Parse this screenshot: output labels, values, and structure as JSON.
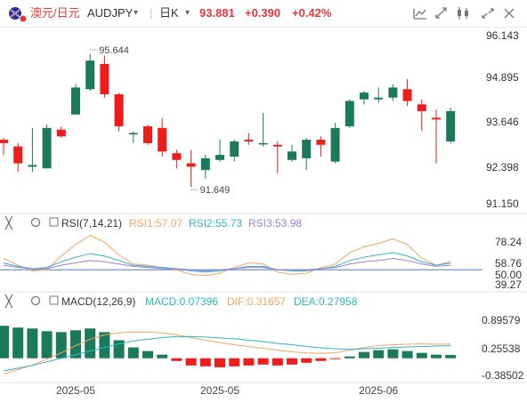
{
  "header": {
    "pair_name": "澳元/日元",
    "symbol": "AUDJPY",
    "timeframe": "日K",
    "price": "93.881",
    "change": "+0.390",
    "change_pct": "+0.42%"
  },
  "colors": {
    "up": "#1a7a5a",
    "down": "#ef1c1c",
    "rsi1": "#f7a35c",
    "rsi2": "#2bb5c8",
    "rsi3": "#9c7cd6",
    "macd": "#2bb5c8",
    "dif": "#f7a35c",
    "dea": "#2bb5c8",
    "accent": "#e23a3a"
  },
  "chart_data": [
    {
      "type": "candlestick",
      "y_ticks": [
        "96.143",
        "94.895",
        "93.646",
        "92.398",
        "91.150"
      ],
      "ylim": [
        91.15,
        96.143
      ],
      "annotations": [
        {
          "label": "95.644",
          "index": 6,
          "value": 95.644
        },
        {
          "label": "91.649",
          "index": 13,
          "value": 91.649
        }
      ],
      "candles": [
        {
          "o": 93.05,
          "h": 93.1,
          "l": 92.6,
          "c": 92.95
        },
        {
          "o": 92.85,
          "h": 92.95,
          "l": 92.1,
          "c": 92.35
        },
        {
          "o": 92.25,
          "h": 93.4,
          "l": 92.1,
          "c": 92.3
        },
        {
          "o": 92.2,
          "h": 93.5,
          "l": 92.2,
          "c": 93.4
        },
        {
          "o": 93.35,
          "h": 93.45,
          "l": 93.1,
          "c": 93.15
        },
        {
          "o": 93.8,
          "h": 94.7,
          "l": 93.8,
          "c": 94.6
        },
        {
          "o": 94.55,
          "h": 95.6,
          "l": 94.5,
          "c": 95.4
        },
        {
          "o": 95.3,
          "h": 95.55,
          "l": 94.3,
          "c": 94.4
        },
        {
          "o": 94.4,
          "h": 94.45,
          "l": 93.3,
          "c": 93.45
        },
        {
          "o": 93.25,
          "h": 93.3,
          "l": 92.95,
          "c": 93.25
        },
        {
          "o": 93.45,
          "h": 93.5,
          "l": 92.9,
          "c": 92.95
        },
        {
          "o": 93.4,
          "h": 93.7,
          "l": 92.55,
          "c": 92.7
        },
        {
          "o": 92.65,
          "h": 92.75,
          "l": 92.2,
          "c": 92.45
        },
        {
          "o": 92.35,
          "h": 92.75,
          "l": 91.65,
          "c": 92.25
        },
        {
          "o": 92.15,
          "h": 92.6,
          "l": 91.9,
          "c": 92.5
        },
        {
          "o": 92.45,
          "h": 93.05,
          "l": 92.4,
          "c": 92.6
        },
        {
          "o": 92.55,
          "h": 93.05,
          "l": 92.4,
          "c": 93.0
        },
        {
          "o": 93.05,
          "h": 93.25,
          "l": 92.9,
          "c": 93.0
        },
        {
          "o": 92.95,
          "h": 93.85,
          "l": 92.85,
          "c": 92.95
        },
        {
          "o": 92.9,
          "h": 93.0,
          "l": 92.05,
          "c": 92.85
        },
        {
          "o": 92.45,
          "h": 92.9,
          "l": 92.4,
          "c": 92.7
        },
        {
          "o": 92.5,
          "h": 93.1,
          "l": 92.15,
          "c": 93.05
        },
        {
          "o": 93.05,
          "h": 93.15,
          "l": 92.55,
          "c": 92.9
        },
        {
          "o": 92.4,
          "h": 93.55,
          "l": 92.35,
          "c": 93.4
        },
        {
          "o": 93.45,
          "h": 94.25,
          "l": 93.4,
          "c": 94.2
        },
        {
          "o": 94.25,
          "h": 94.5,
          "l": 94.1,
          "c": 94.45
        },
        {
          "o": 94.25,
          "h": 94.6,
          "l": 94.15,
          "c": 94.3
        },
        {
          "o": 94.3,
          "h": 94.7,
          "l": 94.2,
          "c": 94.6
        },
        {
          "o": 94.55,
          "h": 94.85,
          "l": 94.05,
          "c": 94.2
        },
        {
          "o": 94.1,
          "h": 94.25,
          "l": 93.3,
          "c": 93.9
        },
        {
          "o": 93.7,
          "h": 93.95,
          "l": 92.35,
          "c": 93.65
        },
        {
          "o": 93.0,
          "h": 94.0,
          "l": 92.95,
          "c": 93.9
        }
      ]
    },
    {
      "type": "line",
      "indicator_name": "RSI(7,14,21)",
      "y_ticks": [
        "78.24",
        "58.76",
        "50.00",
        "39.27"
      ],
      "ylim": [
        37,
        82
      ],
      "series": [
        {
          "name": "RSI1",
          "label": "RSI1:57.07",
          "values": [
            60,
            54,
            49,
            50,
            62,
            72,
            80,
            74,
            63,
            55,
            54,
            52,
            50,
            46,
            45,
            47,
            52,
            56,
            55,
            48,
            46,
            47,
            52,
            55,
            65,
            70,
            73,
            77,
            72,
            60,
            54,
            57.07
          ]
        },
        {
          "name": "RSI2",
          "label": "RSI2:55.73",
          "values": [
            56,
            53,
            51,
            52,
            57,
            61,
            64,
            62,
            58,
            54,
            53,
            52,
            51,
            49,
            48,
            49,
            51,
            53,
            53,
            50,
            49,
            49,
            51,
            53,
            58,
            61,
            63,
            65,
            62,
            57,
            54,
            55.73
          ]
        },
        {
          "name": "RSI3",
          "label": "RSI3:53.98",
          "values": [
            54,
            52,
            51,
            51,
            54,
            56,
            58,
            57,
            55,
            53,
            52,
            51,
            51,
            50,
            49,
            50,
            51,
            52,
            52,
            50,
            50,
            50,
            51,
            52,
            55,
            57,
            58,
            60,
            58,
            55,
            53,
            53.98
          ]
        }
      ]
    },
    {
      "type": "bar",
      "indicator_name": "MACD(12,26,9)",
      "y_ticks": [
        "0.89579",
        "0.25538",
        "-0.38502"
      ],
      "ylim": [
        -0.42,
        1.0
      ],
      "series": [
        {
          "name": "MACD",
          "label": "MACD:0.07396",
          "values": [
            0.72,
            0.68,
            0.66,
            0.6,
            0.58,
            0.62,
            0.66,
            0.58,
            0.4,
            0.24,
            0.16,
            0.08,
            -0.06,
            -0.16,
            -0.18,
            -0.2,
            -0.18,
            -0.16,
            -0.14,
            -0.16,
            -0.14,
            -0.1,
            -0.06,
            -0.02,
            0.04,
            0.14,
            0.18,
            0.2,
            0.16,
            0.12,
            0.08,
            0.074
          ]
        },
        {
          "name": "DIF",
          "label": "DIF:0.31657",
          "values": [
            -0.35,
            -0.25,
            -0.15,
            -0.02,
            0.12,
            0.28,
            0.42,
            0.52,
            0.56,
            0.58,
            0.58,
            0.56,
            0.52,
            0.46,
            0.4,
            0.35,
            0.3,
            0.26,
            0.22,
            0.18,
            0.14,
            0.12,
            0.11,
            0.12,
            0.18,
            0.24,
            0.28,
            0.3,
            0.31,
            0.32,
            0.31,
            0.31657
          ]
        },
        {
          "name": "DEA",
          "label": "DEA:0.27958",
          "values": [
            -0.28,
            -0.22,
            -0.16,
            -0.08,
            0.0,
            0.08,
            0.16,
            0.24,
            0.32,
            0.38,
            0.42,
            0.46,
            0.48,
            0.48,
            0.47,
            0.45,
            0.43,
            0.4,
            0.37,
            0.33,
            0.3,
            0.26,
            0.23,
            0.21,
            0.2,
            0.21,
            0.22,
            0.24,
            0.25,
            0.26,
            0.27,
            0.27958
          ]
        }
      ]
    }
  ],
  "x_axis_labels": [
    {
      "label": "2025-05",
      "index": 5
    },
    {
      "label": "2025-05",
      "index": 15
    },
    {
      "label": "2025-06",
      "index": 26
    }
  ]
}
